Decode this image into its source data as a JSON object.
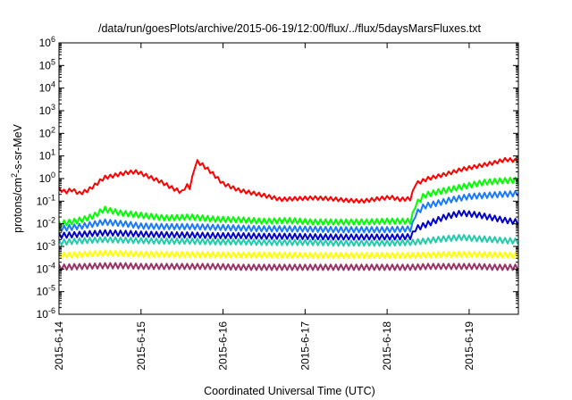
{
  "chart_data": {
    "type": "line",
    "title": "/data/run/goesPlots/archive/2015-06-19/12:00/flux/../flux/5daysMarsFluxes.txt",
    "xlabel": "Coordinated Universal Time (UTC)",
    "ylabel": "protons/cm²-s-sr-MeV",
    "ylabel_parts": {
      "pre": "protons/cm",
      "sup": "2",
      "post": "-s-sr-MeV"
    },
    "xlim": [
      0,
      5.6
    ],
    "ylim_log10": [
      -6,
      6
    ],
    "yscale": "log",
    "x_ticks": [
      {
        "x": 0,
        "label": "2015-6-14"
      },
      {
        "x": 1,
        "label": "2015-6-15"
      },
      {
        "x": 2,
        "label": "2015-6-16"
      },
      {
        "x": 3,
        "label": "2015-6-17"
      },
      {
        "x": 4,
        "label": "2015-6-18"
      },
      {
        "x": 5,
        "label": "2015-6-19"
      }
    ],
    "y_ticks": [
      {
        "exp": 6,
        "base": "10",
        "sup": "6"
      },
      {
        "exp": 5,
        "base": "10",
        "sup": "5"
      },
      {
        "exp": 4,
        "base": "10",
        "sup": "4"
      },
      {
        "exp": 3,
        "base": "10",
        "sup": "3"
      },
      {
        "exp": 2,
        "base": "10",
        "sup": "2"
      },
      {
        "exp": 1,
        "base": "10",
        "sup": "1"
      },
      {
        "exp": 0,
        "base": "10",
        "sup": "0"
      },
      {
        "exp": -1,
        "base": "10",
        "sup": "-1"
      },
      {
        "exp": -2,
        "base": "10",
        "sup": "-2"
      },
      {
        "exp": -3,
        "base": "10",
        "sup": "-3"
      },
      {
        "exp": -4,
        "base": "10",
        "sup": "-4"
      },
      {
        "exp": -5,
        "base": "10",
        "sup": "-5"
      },
      {
        "exp": -6,
        "base": "10",
        "sup": "-6"
      }
    ],
    "grid": false,
    "legend": "none",
    "series": [
      {
        "color": "#ff0000",
        "points": [
          [
            0,
            0.35
          ],
          [
            0.08,
            0.25
          ],
          [
            0.15,
            0.33
          ],
          [
            0.25,
            0.22
          ],
          [
            0.35,
            0.3
          ],
          [
            0.45,
            0.55
          ],
          [
            0.55,
            1.1
          ],
          [
            0.65,
            1.3
          ],
          [
            0.75,
            1.6
          ],
          [
            0.85,
            1.9
          ],
          [
            0.95,
            2.0
          ],
          [
            1.1,
            1.2
          ],
          [
            1.25,
            0.7
          ],
          [
            1.4,
            0.35
          ],
          [
            1.5,
            0.25
          ],
          [
            1.55,
            0.5
          ],
          [
            1.6,
            0.4
          ],
          [
            1.67,
            6.0
          ],
          [
            1.75,
            4.0
          ],
          [
            1.85,
            2.0
          ],
          [
            2.0,
            0.6
          ],
          [
            2.2,
            0.3
          ],
          [
            2.5,
            0.18
          ],
          [
            2.7,
            0.12
          ],
          [
            2.9,
            0.13
          ],
          [
            3.1,
            0.14
          ],
          [
            3.3,
            0.13
          ],
          [
            3.5,
            0.11
          ],
          [
            3.7,
            0.1
          ],
          [
            3.9,
            0.13
          ],
          [
            4.05,
            0.15
          ],
          [
            4.15,
            0.12
          ],
          [
            4.3,
            0.13
          ],
          [
            4.33,
            0.55
          ],
          [
            4.5,
            1.0
          ],
          [
            4.7,
            1.5
          ],
          [
            4.9,
            2.5
          ],
          [
            5.1,
            3.5
          ],
          [
            5.3,
            5.0
          ],
          [
            5.45,
            7.0
          ],
          [
            5.6,
            6.0
          ]
        ]
      },
      {
        "color": "#00ff00",
        "points": [
          [
            0,
            0.01
          ],
          [
            0.2,
            0.013
          ],
          [
            0.35,
            0.018
          ],
          [
            0.45,
            0.025
          ],
          [
            0.55,
            0.045
          ],
          [
            0.75,
            0.03
          ],
          [
            1.0,
            0.024
          ],
          [
            1.3,
            0.018
          ],
          [
            1.6,
            0.02
          ],
          [
            1.9,
            0.016
          ],
          [
            2.2,
            0.015
          ],
          [
            2.5,
            0.013
          ],
          [
            2.8,
            0.014
          ],
          [
            3.1,
            0.012
          ],
          [
            3.4,
            0.012
          ],
          [
            3.7,
            0.012
          ],
          [
            4.0,
            0.013
          ],
          [
            4.3,
            0.013
          ],
          [
            4.33,
            0.06
          ],
          [
            4.45,
            0.18
          ],
          [
            4.6,
            0.25
          ],
          [
            4.8,
            0.35
          ],
          [
            5.0,
            0.5
          ],
          [
            5.2,
            0.7
          ],
          [
            5.4,
            0.8
          ],
          [
            5.6,
            0.85
          ]
        ]
      },
      {
        "color": "#1a7aff",
        "points": [
          [
            0,
            0.006
          ],
          [
            0.3,
            0.008
          ],
          [
            0.55,
            0.012
          ],
          [
            0.8,
            0.01
          ],
          [
            1.0,
            0.008
          ],
          [
            1.3,
            0.0075
          ],
          [
            1.6,
            0.0075
          ],
          [
            1.9,
            0.007
          ],
          [
            2.2,
            0.0065
          ],
          [
            2.5,
            0.006
          ],
          [
            2.8,
            0.006
          ],
          [
            3.1,
            0.0058
          ],
          [
            3.4,
            0.0055
          ],
          [
            3.7,
            0.0055
          ],
          [
            4.0,
            0.0055
          ],
          [
            4.3,
            0.006
          ],
          [
            4.34,
            0.025
          ],
          [
            4.45,
            0.06
          ],
          [
            4.6,
            0.08
          ],
          [
            4.8,
            0.12
          ],
          [
            5.0,
            0.16
          ],
          [
            5.2,
            0.18
          ],
          [
            5.4,
            0.2
          ],
          [
            5.6,
            0.22
          ]
        ]
      },
      {
        "color": "#0000cc",
        "points": [
          [
            0,
            0.003
          ],
          [
            0.3,
            0.0035
          ],
          [
            0.55,
            0.004
          ],
          [
            0.8,
            0.0038
          ],
          [
            1.0,
            0.0035
          ],
          [
            1.3,
            0.0033
          ],
          [
            1.6,
            0.0032
          ],
          [
            1.9,
            0.003
          ],
          [
            2.2,
            0.003
          ],
          [
            2.5,
            0.0028
          ],
          [
            2.8,
            0.0028
          ],
          [
            3.1,
            0.0027
          ],
          [
            3.4,
            0.0026
          ],
          [
            3.7,
            0.0026
          ],
          [
            4.0,
            0.0026
          ],
          [
            4.3,
            0.0027
          ],
          [
            4.34,
            0.006
          ],
          [
            4.5,
            0.01
          ],
          [
            4.7,
            0.02
          ],
          [
            4.9,
            0.03
          ],
          [
            5.1,
            0.025
          ],
          [
            5.3,
            0.018
          ],
          [
            5.45,
            0.014
          ],
          [
            5.6,
            0.012
          ]
        ]
      },
      {
        "color": "#22ccaa",
        "points": [
          [
            0,
            0.0015
          ],
          [
            0.3,
            0.0018
          ],
          [
            0.55,
            0.002
          ],
          [
            0.8,
            0.0019
          ],
          [
            1.0,
            0.0018
          ],
          [
            1.3,
            0.0017
          ],
          [
            1.6,
            0.0017
          ],
          [
            1.9,
            0.0016
          ],
          [
            2.2,
            0.0016
          ],
          [
            2.5,
            0.0015
          ],
          [
            2.8,
            0.0015
          ],
          [
            3.1,
            0.0015
          ],
          [
            3.4,
            0.0014
          ],
          [
            3.7,
            0.0014
          ],
          [
            4.0,
            0.0014
          ],
          [
            4.3,
            0.0015
          ],
          [
            4.5,
            0.0018
          ],
          [
            4.7,
            0.0022
          ],
          [
            4.9,
            0.0025
          ],
          [
            5.1,
            0.0022
          ],
          [
            5.3,
            0.002
          ],
          [
            5.45,
            0.0018
          ],
          [
            5.6,
            0.0017
          ]
        ]
      },
      {
        "color": "#ffff00",
        "points": [
          [
            0,
            0.0004
          ],
          [
            0.3,
            0.00045
          ],
          [
            0.55,
            0.0005
          ],
          [
            0.8,
            0.00048
          ],
          [
            1.0,
            0.00045
          ],
          [
            1.3,
            0.00045
          ],
          [
            1.6,
            0.00044
          ],
          [
            1.9,
            0.00043
          ],
          [
            2.2,
            0.00042
          ],
          [
            2.5,
            0.00042
          ],
          [
            2.8,
            0.00041
          ],
          [
            3.1,
            0.0004
          ],
          [
            3.4,
            0.0004
          ],
          [
            3.7,
            0.0004
          ],
          [
            4.0,
            0.0004
          ],
          [
            4.3,
            0.0004
          ],
          [
            4.5,
            0.00042
          ],
          [
            4.7,
            0.00044
          ],
          [
            4.9,
            0.00045
          ],
          [
            5.1,
            0.00044
          ],
          [
            5.3,
            0.00043
          ],
          [
            5.45,
            0.00042
          ],
          [
            5.6,
            0.0004
          ]
        ]
      },
      {
        "color": "#993366",
        "points": [
          [
            0,
            0.00012
          ],
          [
            0.3,
            0.00013
          ],
          [
            0.55,
            0.00014
          ],
          [
            0.8,
            0.00014
          ],
          [
            1.0,
            0.00013
          ],
          [
            1.3,
            0.00013
          ],
          [
            1.6,
            0.00013
          ],
          [
            1.9,
            0.00013
          ],
          [
            2.2,
            0.00012
          ],
          [
            2.5,
            0.00012
          ],
          [
            2.8,
            0.00012
          ],
          [
            3.1,
            0.00012
          ],
          [
            3.4,
            0.00012
          ],
          [
            3.7,
            0.00012
          ],
          [
            4.0,
            0.00012
          ],
          [
            4.3,
            0.00012
          ],
          [
            4.5,
            0.00013
          ],
          [
            4.7,
            0.00013
          ],
          [
            4.9,
            0.00013
          ],
          [
            5.1,
            0.00013
          ],
          [
            5.3,
            0.00012
          ],
          [
            5.45,
            0.00012
          ],
          [
            5.6,
            0.00012
          ]
        ]
      }
    ]
  }
}
